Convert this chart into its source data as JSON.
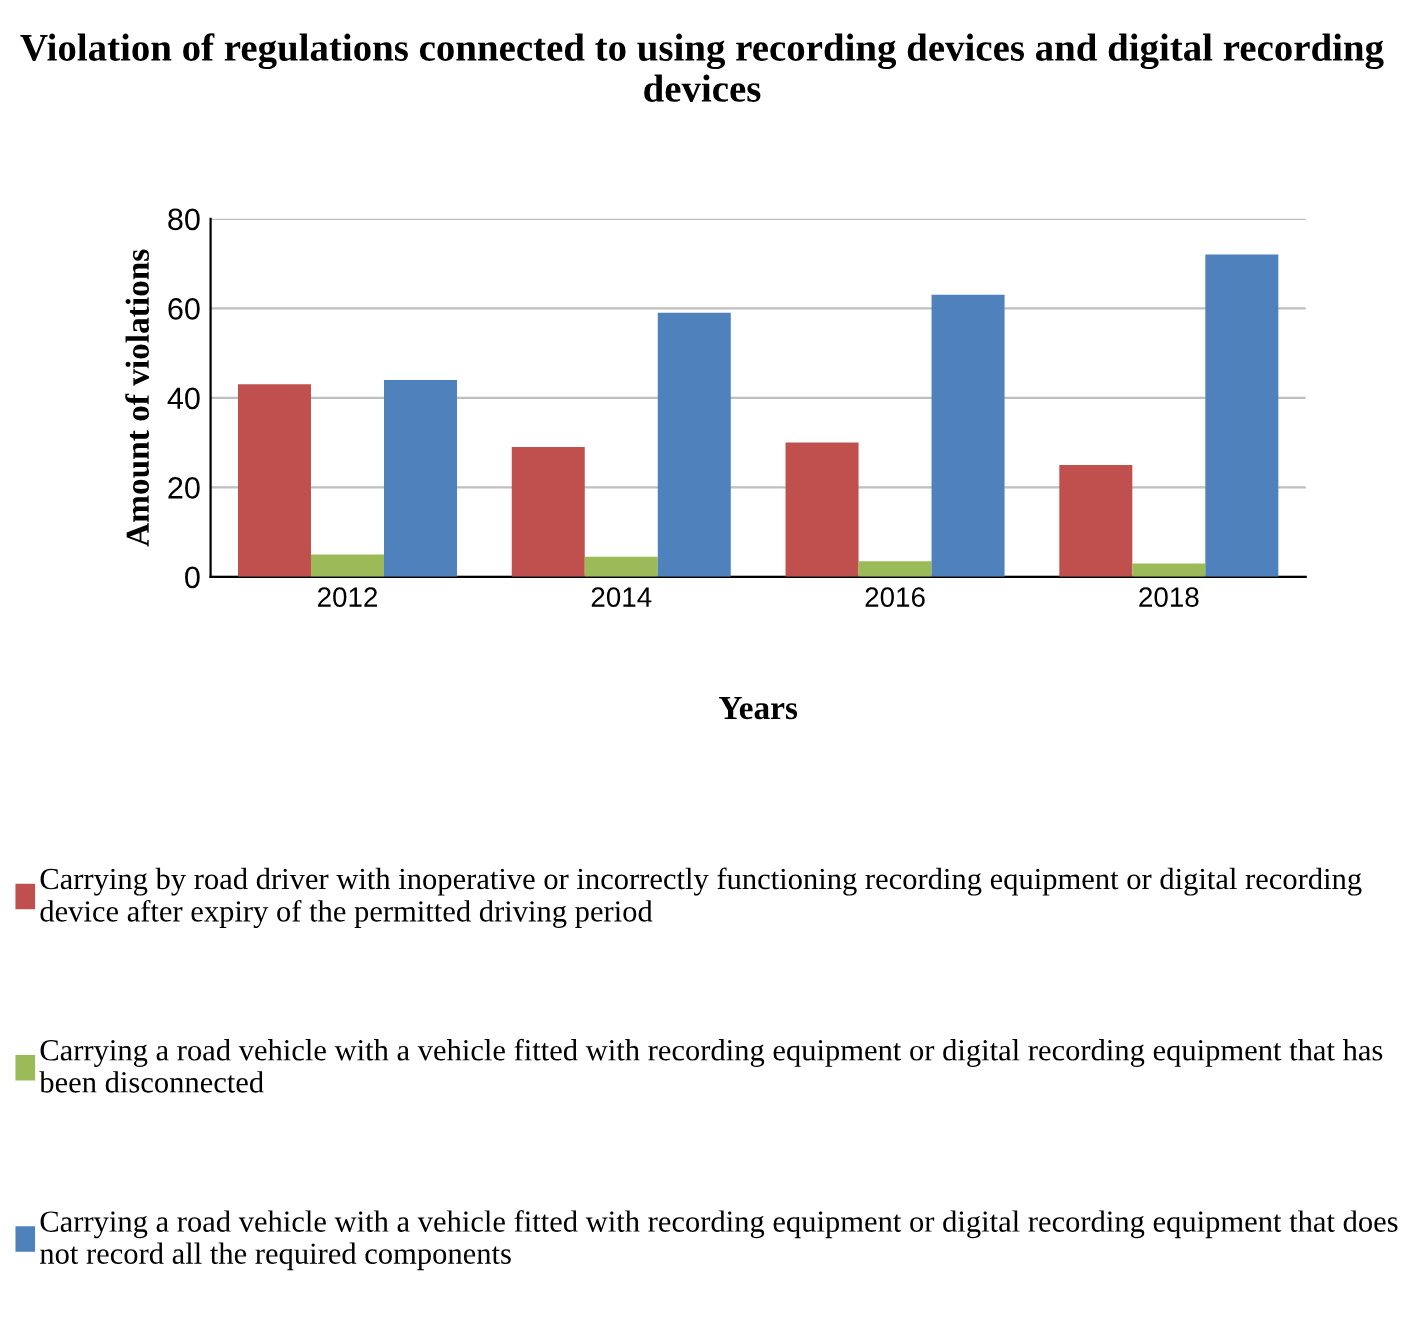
{
  "chart_data": {
    "type": "bar",
    "title": "Violation of regulations connected to using recording devices and digital recording devices",
    "xlabel": "Years",
    "ylabel": "Amount of violations",
    "categories": [
      "2012",
      "2014",
      "2016",
      "2018"
    ],
    "series": [
      {
        "name": "Carrying by road driver with inoperative or incorrectly functioning recording equipment or digital recording device after expiry of the permitted driving period",
        "color": "#c0504d",
        "values": [
          43,
          29,
          30,
          25
        ]
      },
      {
        "name": "Carrying a road vehicle with a vehicle fitted with recording equipment or digital recording equipment that has been disconnected",
        "color": "#9bbb59",
        "values": [
          5,
          4.5,
          3.5,
          3
        ]
      },
      {
        "name": "Carrying a road vehicle with a vehicle fitted with recording equipment or digital recording equipment that does not record all the required components",
        "color": "#4f81bd",
        "values": [
          44,
          59,
          63,
          72
        ]
      }
    ],
    "ylim": [
      0,
      80
    ],
    "yticks": [
      0,
      20,
      40,
      60,
      80
    ],
    "grid": "y",
    "legend": "bottom"
  }
}
